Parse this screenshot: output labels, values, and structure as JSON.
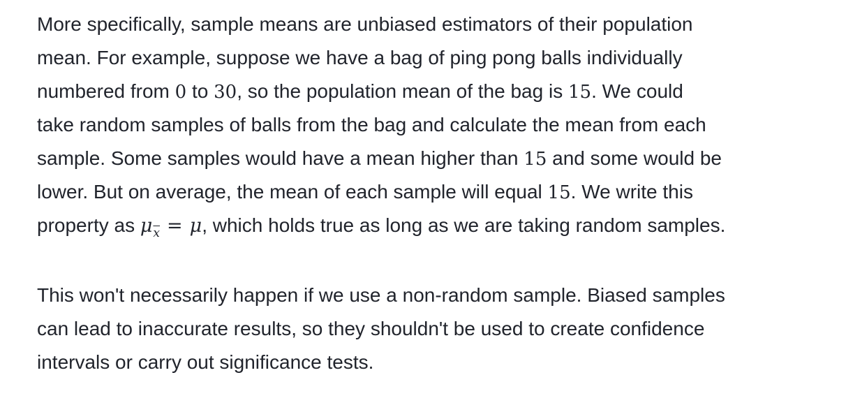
{
  "paragraph1": {
    "line1": "More specifically, sample means are unbiased estimators of their population",
    "line2": "mean. For example, suppose we have a bag of ping pong balls individually",
    "line3_a": "numbered from ",
    "line3_m1": "0",
    "line3_b": " to ",
    "line3_m2": "30",
    "line3_c": ", so the population mean of the bag is ",
    "line3_m3": "15",
    "line3_d": ". We could",
    "line4": "take random samples of balls from the bag and calculate the mean from each",
    "line5_a": "sample. Some samples would have a mean higher than ",
    "line5_m": "15",
    "line5_b": " and some would be",
    "line6_a": "lower. But on average, the mean of each sample will equal ",
    "line6_m": "15",
    "line6_b": ". We write this",
    "line7_a": "property as ",
    "line7_mu1": "μ",
    "line7_sub": "x",
    "line7_eq": "=",
    "line7_mu2": "μ",
    "line7_b": ", which holds true as long as we are taking random samples."
  },
  "paragraph2": {
    "line1": "This won't necessarily happen if we use a non-random sample. Biased samples",
    "line2": "can lead to inaccurate results, so they shouldn't be used to create confidence",
    "line3": "intervals or carry out significance tests."
  }
}
